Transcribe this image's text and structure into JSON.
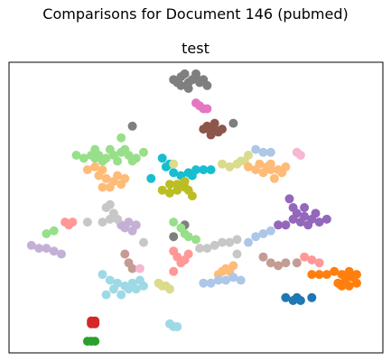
{
  "figure_title": "Comparisons for Document 146 (pubmed)",
  "chart_data": {
    "type": "scatter",
    "title": "test",
    "xlabel": "",
    "ylabel": "",
    "xlim": [
      0,
      100
    ],
    "ylim": [
      0,
      100
    ],
    "xticks": [],
    "yticks": [],
    "grid": false,
    "legend": "none",
    "series": [
      {
        "color": "#7f7f7f",
        "points": [
          [
            44,
            94
          ],
          [
            46,
            95
          ],
          [
            48,
            93
          ],
          [
            50,
            95
          ],
          [
            52,
            94
          ],
          [
            45,
            93
          ],
          [
            47,
            96
          ],
          [
            49,
            94
          ],
          [
            51,
            93
          ],
          [
            53,
            92
          ],
          [
            46,
            92
          ],
          [
            50,
            96
          ],
          [
            48,
            91
          ]
        ]
      },
      {
        "color": "#e377c2",
        "points": [
          [
            50,
            86
          ],
          [
            51,
            85
          ],
          [
            52,
            84
          ],
          [
            53,
            84
          ]
        ]
      },
      {
        "color": "#7f7f7f",
        "points": [
          [
            44,
            40
          ],
          [
            47,
            44
          ],
          [
            33,
            78
          ],
          [
            60,
            79
          ]
        ]
      },
      {
        "color": "#8c564b",
        "points": [
          [
            52,
            77
          ],
          [
            53,
            78
          ],
          [
            54,
            76
          ],
          [
            55,
            77
          ],
          [
            56,
            76
          ],
          [
            57,
            77
          ],
          [
            54,
            75
          ],
          [
            55,
            79
          ]
        ]
      },
      {
        "color": "#98df8a",
        "points": [
          [
            18,
            68
          ],
          [
            20,
            67
          ],
          [
            22,
            68
          ],
          [
            24,
            68
          ],
          [
            26,
            67
          ],
          [
            28,
            68
          ],
          [
            30,
            69
          ],
          [
            32,
            68
          ],
          [
            34,
            67
          ],
          [
            23,
            70
          ],
          [
            27,
            70
          ],
          [
            31,
            70
          ],
          [
            25,
            66
          ],
          [
            29,
            66
          ],
          [
            33,
            66
          ],
          [
            36,
            69
          ],
          [
            30,
            74
          ],
          [
            23,
            67
          ]
        ]
      },
      {
        "color": "#ffbb78",
        "points": [
          [
            21,
            63
          ],
          [
            23,
            64
          ],
          [
            25,
            63
          ],
          [
            24,
            61
          ],
          [
            26,
            60
          ],
          [
            28,
            59
          ],
          [
            30,
            58
          ],
          [
            27,
            57
          ],
          [
            25,
            57
          ],
          [
            29,
            61
          ],
          [
            31,
            60
          ]
        ]
      },
      {
        "color": "#17becf",
        "points": [
          [
            41,
            67
          ],
          [
            42,
            64
          ],
          [
            44,
            62
          ],
          [
            46,
            61
          ],
          [
            48,
            62
          ],
          [
            50,
            63
          ],
          [
            52,
            63
          ],
          [
            54,
            63
          ],
          [
            43,
            65
          ],
          [
            38,
            60
          ],
          [
            49,
            61
          ]
        ]
      },
      {
        "color": "#dbdb8d",
        "points": [
          [
            44,
            65
          ],
          [
            57,
            65
          ],
          [
            59,
            64
          ],
          [
            61,
            65
          ],
          [
            63,
            66
          ],
          [
            64,
            68
          ],
          [
            62,
            66
          ]
        ]
      },
      {
        "color": "#bcbd22",
        "points": [
          [
            41,
            56
          ],
          [
            43,
            58
          ],
          [
            45,
            58
          ],
          [
            47,
            57
          ],
          [
            43,
            55
          ],
          [
            45,
            56
          ],
          [
            47,
            59
          ],
          [
            49,
            54
          ],
          [
            48,
            56
          ]
        ]
      },
      {
        "color": "#aec7e8",
        "points": [
          [
            66,
            70
          ],
          [
            68,
            69
          ],
          [
            70,
            69
          ]
        ]
      },
      {
        "color": "#ffbb78",
        "points": [
          [
            64,
            64
          ],
          [
            66,
            63
          ],
          [
            68,
            62
          ],
          [
            70,
            63
          ],
          [
            72,
            63
          ],
          [
            74,
            64
          ],
          [
            69,
            64
          ],
          [
            71,
            60
          ],
          [
            73,
            62
          ],
          [
            67,
            65
          ],
          [
            70,
            65
          ]
        ]
      },
      {
        "color": "#f7b6d2",
        "points": [
          [
            77,
            69
          ],
          [
            78,
            68
          ]
        ]
      },
      {
        "color": "#9467bd",
        "points": [
          [
            75,
            53
          ],
          [
            76,
            50
          ],
          [
            77,
            48
          ],
          [
            79,
            47
          ],
          [
            81,
            46
          ],
          [
            83,
            45
          ],
          [
            74,
            44
          ],
          [
            72,
            44
          ],
          [
            79,
            50
          ],
          [
            85,
            46
          ],
          [
            80,
            44
          ],
          [
            78,
            45
          ],
          [
            76,
            46
          ],
          [
            82,
            48
          ]
        ]
      },
      {
        "color": "#c5b0d5",
        "points": [
          [
            6,
            37
          ],
          [
            8,
            36
          ],
          [
            10,
            36
          ],
          [
            12,
            35
          ],
          [
            14,
            34
          ],
          [
            30,
            44
          ],
          [
            31,
            43
          ],
          [
            33,
            42
          ],
          [
            34,
            44
          ],
          [
            32,
            45
          ]
        ]
      },
      {
        "color": "#98df8a",
        "points": [
          [
            10,
            41
          ],
          [
            12,
            42
          ]
        ]
      },
      {
        "color": "#ff9896",
        "points": [
          [
            15,
            45
          ],
          [
            17,
            45
          ],
          [
            16,
            44
          ],
          [
            44,
            35
          ],
          [
            45,
            33
          ],
          [
            47,
            32
          ],
          [
            48,
            34
          ],
          [
            46,
            31
          ],
          [
            44,
            28
          ],
          [
            79,
            33
          ],
          [
            81,
            32
          ],
          [
            83,
            31
          ]
        ]
      },
      {
        "color": "#c7c7c7",
        "points": [
          [
            21,
            45
          ],
          [
            25,
            45
          ],
          [
            27,
            46
          ],
          [
            29,
            46
          ],
          [
            28,
            48
          ],
          [
            26,
            50
          ],
          [
            27,
            51
          ],
          [
            36,
            38
          ],
          [
            51,
            36
          ],
          [
            53,
            36
          ],
          [
            55,
            37
          ],
          [
            57,
            38
          ],
          [
            59,
            38
          ],
          [
            61,
            39
          ]
        ]
      },
      {
        "color": "#98df8a",
        "points": [
          [
            44,
            45
          ],
          [
            46,
            43
          ],
          [
            47,
            41
          ],
          [
            48,
            40
          ],
          [
            50,
            39
          ]
        ]
      },
      {
        "color": "#aec7e8",
        "points": [
          [
            64,
            38
          ],
          [
            66,
            40
          ],
          [
            68,
            41
          ],
          [
            70,
            42
          ]
        ]
      },
      {
        "color": "#c49c94",
        "points": [
          [
            31,
            34
          ],
          [
            32,
            31
          ],
          [
            33,
            29
          ],
          [
            68,
            33
          ],
          [
            70,
            31
          ],
          [
            72,
            30
          ],
          [
            74,
            31
          ],
          [
            77,
            31
          ]
        ]
      },
      {
        "color": "#f7b6d2",
        "points": [
          [
            35,
            29
          ]
        ]
      },
      {
        "color": "#ffbb78",
        "points": [
          [
            60,
            30
          ],
          [
            59,
            28
          ],
          [
            57,
            28
          ],
          [
            56,
            27
          ],
          [
            58,
            29
          ]
        ]
      },
      {
        "color": "#c7c7c7",
        "points": [
          [
            61,
            34
          ]
        ]
      },
      {
        "color": "#aec7e8",
        "points": [
          [
            52,
            24
          ],
          [
            54,
            24
          ],
          [
            56,
            25
          ],
          [
            58,
            25
          ],
          [
            60,
            26
          ],
          [
            62,
            25
          ]
        ]
      },
      {
        "color": "#9edae5",
        "points": [
          [
            25,
            27
          ],
          [
            27,
            25
          ],
          [
            29,
            24
          ],
          [
            31,
            23
          ],
          [
            33,
            24
          ],
          [
            35,
            25
          ],
          [
            28,
            22
          ],
          [
            30,
            20
          ],
          [
            32,
            22
          ],
          [
            34,
            22
          ],
          [
            36,
            23
          ],
          [
            26,
            20
          ],
          [
            43,
            10
          ],
          [
            44,
            9
          ],
          [
            45,
            9
          ]
        ]
      },
      {
        "color": "#dbdb8d",
        "points": [
          [
            40,
            24
          ],
          [
            41,
            23
          ],
          [
            42,
            23
          ],
          [
            43,
            22
          ]
        ]
      },
      {
        "color": "#ff7f0e",
        "points": [
          [
            81,
            27
          ],
          [
            83,
            27
          ],
          [
            85,
            27
          ],
          [
            87,
            28
          ],
          [
            89,
            27
          ],
          [
            91,
            28
          ],
          [
            93,
            27
          ],
          [
            92,
            26
          ],
          [
            90,
            25
          ],
          [
            88,
            24
          ],
          [
            89,
            23
          ],
          [
            91,
            23
          ],
          [
            93,
            24
          ],
          [
            90,
            26
          ]
        ]
      },
      {
        "color": "#1f77b4",
        "points": [
          [
            74,
            19
          ],
          [
            76,
            18
          ],
          [
            77,
            19
          ],
          [
            78,
            18
          ],
          [
            81,
            19
          ]
        ]
      },
      {
        "color": "#d62728",
        "points": [
          [
            22,
            11
          ],
          [
            23,
            11
          ],
          [
            22,
            10
          ],
          [
            23,
            10
          ]
        ]
      },
      {
        "color": "#2ca02c",
        "points": [
          [
            21,
            4
          ],
          [
            22,
            4
          ],
          [
            23,
            4
          ]
        ]
      }
    ]
  }
}
